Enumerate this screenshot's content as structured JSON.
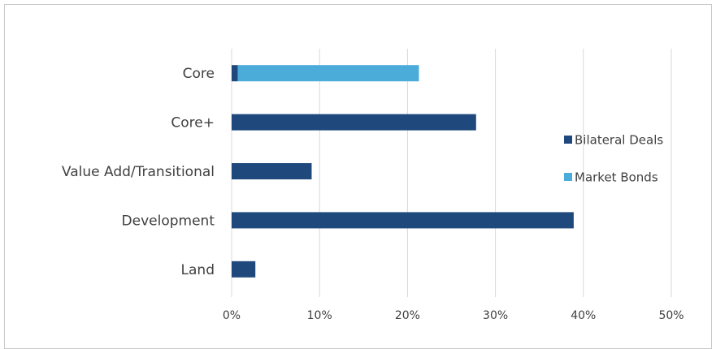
{
  "chart_data": {
    "type": "bar",
    "orientation": "horizontal",
    "stacked": true,
    "categories": [
      "Core",
      "Core+",
      "Value Add/Transitional",
      "Development",
      "Land"
    ],
    "series": [
      {
        "name": "Bilateral Deals",
        "values": [
          0.7,
          27.8,
          9.1,
          38.9,
          2.7
        ],
        "color": "#1f497d"
      },
      {
        "name": "Market Bonds",
        "values": [
          20.6,
          0,
          0,
          0,
          0
        ],
        "color": "#4bacd9"
      }
    ],
    "x_ticks": [
      "0%",
      "10%",
      "20%",
      "30%",
      "40%",
      "50%"
    ],
    "xlim": [
      0,
      50
    ],
    "grid": true,
    "legend_position": "right",
    "title": "",
    "xlabel": "",
    "ylabel": ""
  }
}
